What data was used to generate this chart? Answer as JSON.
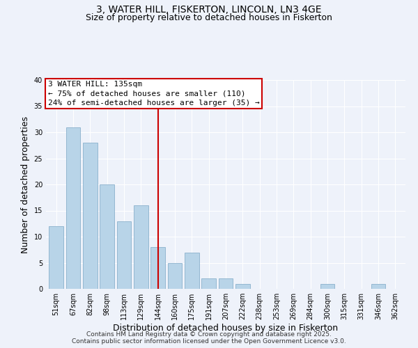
{
  "title": "3, WATER HILL, FISKERTON, LINCOLN, LN3 4GE",
  "subtitle": "Size of property relative to detached houses in Fiskerton",
  "xlabel": "Distribution of detached houses by size in Fiskerton",
  "ylabel": "Number of detached properties",
  "bar_labels": [
    "51sqm",
    "67sqm",
    "82sqm",
    "98sqm",
    "113sqm",
    "129sqm",
    "144sqm",
    "160sqm",
    "175sqm",
    "191sqm",
    "207sqm",
    "222sqm",
    "238sqm",
    "253sqm",
    "269sqm",
    "284sqm",
    "300sqm",
    "315sqm",
    "331sqm",
    "346sqm",
    "362sqm"
  ],
  "bar_values": [
    12,
    31,
    28,
    20,
    13,
    16,
    8,
    5,
    7,
    2,
    2,
    1,
    0,
    0,
    0,
    0,
    1,
    0,
    0,
    1,
    0
  ],
  "bar_color": "#b8d4e8",
  "bar_edge_color": "#8ab0cc",
  "vline_x": 6.0,
  "vline_color": "#cc0000",
  "ylim": [
    0,
    40
  ],
  "yticks": [
    0,
    5,
    10,
    15,
    20,
    25,
    30,
    35,
    40
  ],
  "annotation_title": "3 WATER HILL: 135sqm",
  "annotation_line1": "← 75% of detached houses are smaller (110)",
  "annotation_line2": "24% of semi-detached houses are larger (35) →",
  "annotation_box_color": "#ffffff",
  "annotation_box_edge": "#cc0000",
  "footer1": "Contains HM Land Registry data © Crown copyright and database right 2025.",
  "footer2": "Contains public sector information licensed under the Open Government Licence v3.0.",
  "bg_color": "#eef2fa",
  "title_fontsize": 10,
  "subtitle_fontsize": 9,
  "axis_label_fontsize": 9,
  "tick_fontsize": 7,
  "annotation_fontsize": 8,
  "footer_fontsize": 6.5
}
